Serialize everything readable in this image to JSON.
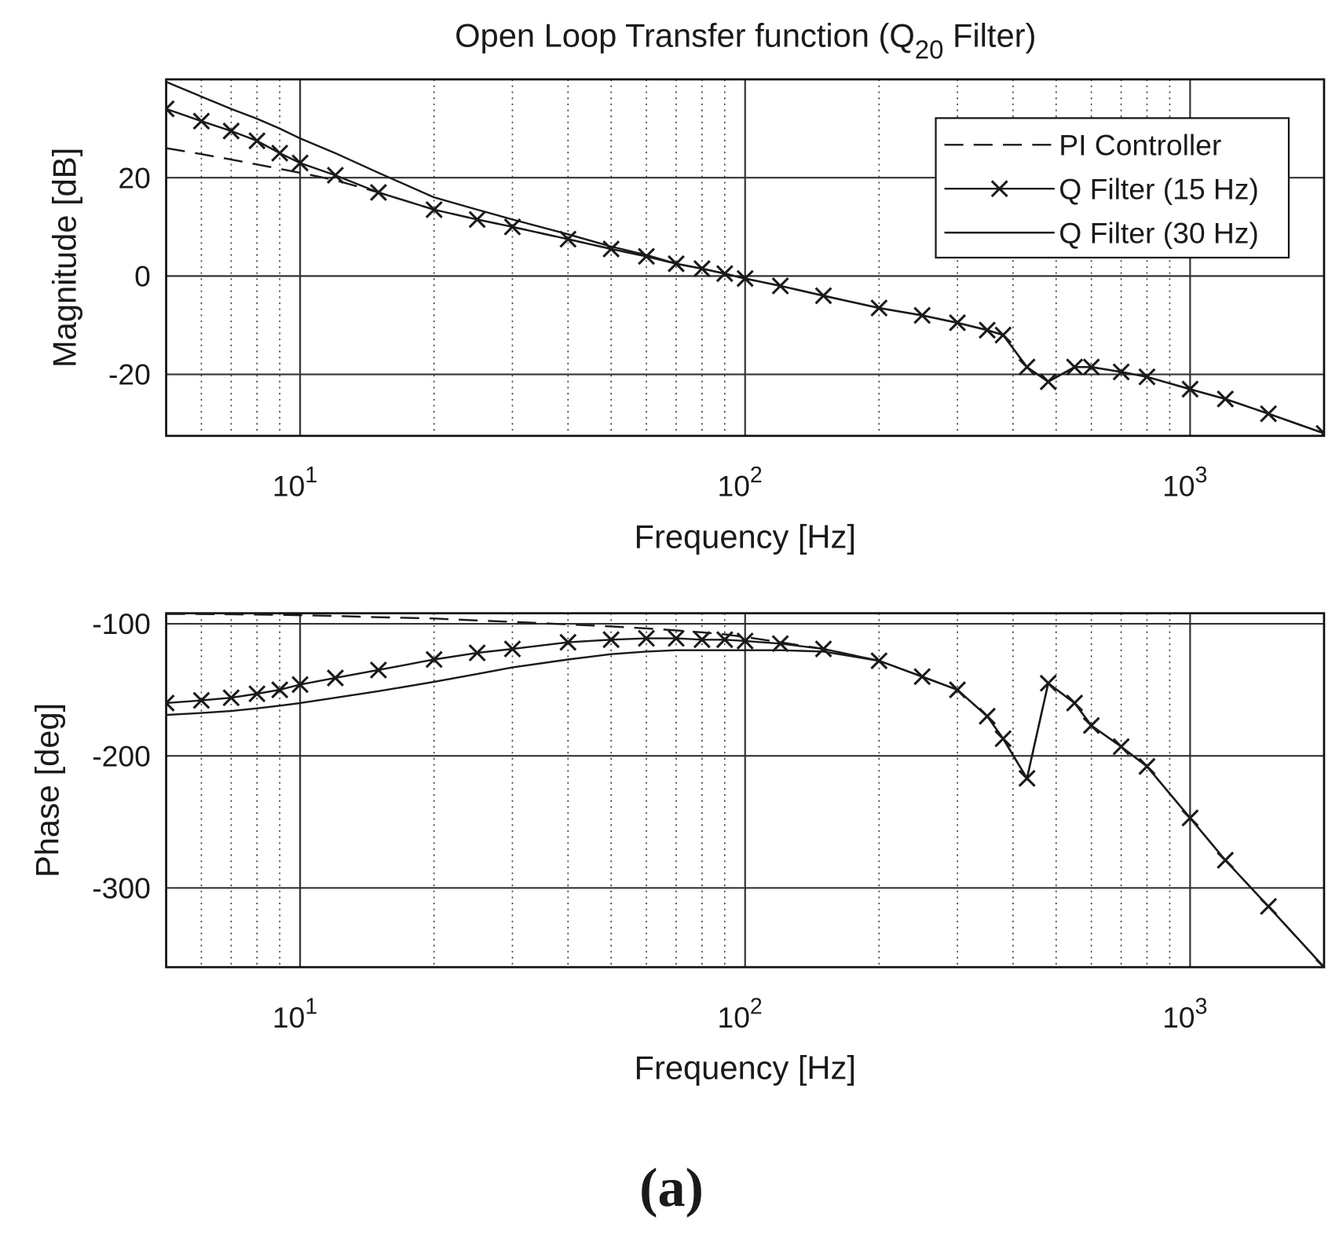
{
  "chart_data": [
    {
      "type": "line",
      "title": "Open Loop Transfer function (Q",
      "title_subscript": "20",
      "title_end": " Filter)",
      "x_label": "Frequency [Hz]",
      "y_label": "Magnitude [dB]",
      "xscale": "log",
      "grid": true,
      "legend": "upper right",
      "xlim": [
        5,
        2000
      ],
      "ylim": [
        -32.5,
        40
      ],
      "xticks": [
        {
          "value": 10,
          "label": "10",
          "exponent": "1"
        },
        {
          "value": 100,
          "label": "10",
          "exponent": "2"
        },
        {
          "value": 1000,
          "label": "10",
          "exponent": "3"
        }
      ],
      "xminor_ticks": [
        6,
        7,
        8,
        9,
        20,
        30,
        40,
        50,
        60,
        70,
        80,
        90,
        200,
        300,
        400,
        500,
        600,
        700,
        800,
        900
      ],
      "yticks": [
        -20,
        0,
        20
      ],
      "x": [
        5,
        6,
        7,
        8,
        9,
        10,
        12,
        15,
        20,
        25,
        30,
        40,
        50,
        60,
        70,
        80,
        90,
        100,
        120,
        150,
        200,
        250,
        300,
        350,
        380,
        430,
        480,
        550,
        600,
        700,
        800,
        1000,
        1200,
        1500,
        2000
      ],
      "series": [
        {
          "name": "PI Controller",
          "color": "#1a1a1a",
          "line_style": "dashed",
          "values": [
            26,
            24.8,
            23.7,
            22.7,
            21.8,
            21,
            19.5,
            17,
            13.5,
            11.5,
            10,
            7.5,
            5.5,
            4,
            2.5,
            1.5,
            0.5,
            -0.5,
            -2,
            -4,
            -6.5,
            -8,
            -9.5,
            -11,
            -12,
            -18.5,
            -21.5,
            -18.5,
            -18.5,
            -19.5,
            -20.5,
            -23,
            -25,
            -28,
            -32
          ]
        },
        {
          "name": "Q Filter (15 Hz)",
          "color": "#1a1a1a",
          "line_style": "solid",
          "marker": "x",
          "values": [
            34,
            31.5,
            29.5,
            27.5,
            25,
            23,
            20.5,
            17,
            13.5,
            11.5,
            10,
            7.5,
            5.5,
            4,
            2.5,
            1.5,
            0.5,
            -0.5,
            -2,
            -4,
            -6.5,
            -8,
            -9.5,
            -11,
            -12,
            -18.5,
            -21.5,
            -18.5,
            -18.5,
            -19.5,
            -20.5,
            -23,
            -25,
            -28,
            -32
          ]
        },
        {
          "name": "Q Filter (30 Hz)",
          "color": "#1a1a1a",
          "line_style": "solid",
          "values": [
            39.5,
            36.5,
            34,
            32,
            30,
            28,
            25,
            21,
            16,
            13.5,
            11.5,
            8.5,
            6,
            4.3,
            2.5,
            1.5,
            0.5,
            -0.5,
            -2,
            -4,
            -6.5,
            -8,
            -9.5,
            -11,
            -12,
            -18.5,
            -21.5,
            -18.5,
            -18.5,
            -19.5,
            -20.5,
            -23,
            -25,
            -28,
            -32
          ]
        }
      ]
    },
    {
      "type": "line",
      "x_label": "Frequency [Hz]",
      "y_label": "Phase [deg]",
      "xscale": "log",
      "grid": true,
      "xlim": [
        5,
        2000
      ],
      "ylim": [
        -360,
        -92
      ],
      "xticks": [
        {
          "value": 10,
          "label": "10",
          "exponent": "1"
        },
        {
          "value": 100,
          "label": "10",
          "exponent": "2"
        },
        {
          "value": 1000,
          "label": "10",
          "exponent": "3"
        }
      ],
      "xminor_ticks": [
        6,
        7,
        8,
        9,
        20,
        30,
        40,
        50,
        60,
        70,
        80,
        90,
        200,
        300,
        400,
        500,
        600,
        700,
        800,
        900
      ],
      "yticks": [
        -300,
        -200,
        -100
      ],
      "x": [
        5,
        6,
        7,
        8,
        9,
        10,
        12,
        15,
        20,
        25,
        30,
        40,
        50,
        60,
        70,
        80,
        90,
        100,
        120,
        150,
        200,
        250,
        300,
        350,
        380,
        430,
        480,
        550,
        600,
        700,
        800,
        1000,
        1200,
        1500,
        2000
      ],
      "series": [
        {
          "color": "#1a1a1a",
          "line_style": "dashed",
          "values": [
            -92.5,
            -92.6,
            -92.8,
            -93,
            -93.2,
            -93.5,
            -94,
            -95,
            -96,
            -97.5,
            -98.5,
            -100.5,
            -102,
            -103.5,
            -105,
            -106.5,
            -108,
            -110,
            -114,
            -119,
            -128,
            -140,
            -150,
            -170,
            -187,
            -217,
            -145,
            -160,
            -177,
            -193,
            -208,
            -247,
            -279,
            -314,
            -360
          ]
        },
        {
          "color": "#1a1a1a",
          "line_style": "solid",
          "marker": "x",
          "values": [
            -160,
            -158,
            -156,
            -153,
            -150,
            -146,
            -141,
            -135,
            -127,
            -122,
            -119,
            -114,
            -112,
            -111,
            -111,
            -112,
            -112,
            -113,
            -115,
            -119,
            -128,
            -140,
            -150,
            -170,
            -187,
            -217,
            -145,
            -160,
            -177,
            -193,
            -208,
            -247,
            -279,
            -314,
            -360
          ]
        },
        {
          "color": "#1a1a1a",
          "line_style": "solid",
          "values": [
            -169,
            -167.5,
            -166,
            -164,
            -162,
            -160,
            -156,
            -151,
            -144,
            -138,
            -133,
            -127,
            -123,
            -121,
            -120,
            -120,
            -120,
            -120,
            -120,
            -121,
            -128,
            -140,
            -150,
            -170,
            -187,
            -217,
            -145,
            -160,
            -177,
            -193,
            -208,
            -247,
            -279,
            -314,
            -360
          ]
        }
      ]
    }
  ],
  "caption": "(a)"
}
